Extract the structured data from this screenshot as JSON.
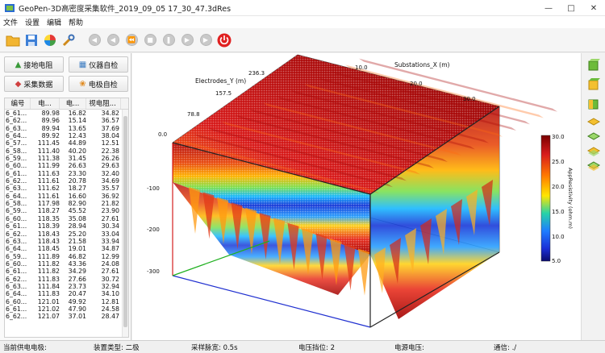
{
  "window": {
    "title": "GeoPen-3D高密度采集软件_2019_09_05 17_30_47.3dRes"
  },
  "menu": [
    "文件",
    "设置",
    "编辑",
    "帮助"
  ],
  "panel_buttons": {
    "ground_resistance": "接地电阻",
    "instrument_check": "仪器自检",
    "collect_data": "采集数据",
    "electrode_check": "电极自检"
  },
  "table": {
    "headers": [
      "编号",
      "电...",
      "电...",
      "视电阻..."
    ],
    "rows": [
      [
        "6_61...",
        "89.98",
        "16.82",
        "34.82"
      ],
      [
        "6_62...",
        "89.96",
        "15.14",
        "36.57"
      ],
      [
        "6_63...",
        "89.94",
        "13.65",
        "37.69"
      ],
      [
        "6_64...",
        "89.92",
        "12.43",
        "38.04"
      ],
      [
        "6_57...",
        "111.45",
        "44.89",
        "12.51"
      ],
      [
        "6_58...",
        "111.40",
        "40.20",
        "22.38"
      ],
      [
        "6_59...",
        "111.38",
        "31.45",
        "26.26"
      ],
      [
        "6_60...",
        "111.99",
        "26.63",
        "29.63"
      ],
      [
        "6_61...",
        "111.63",
        "23.30",
        "32.40"
      ],
      [
        "6_62...",
        "111.61",
        "20.78",
        "34.69"
      ],
      [
        "6_63...",
        "111.62",
        "18.27",
        "35.57"
      ],
      [
        "6_64...",
        "111.61",
        "16.60",
        "36.92"
      ],
      [
        "6_58...",
        "117.98",
        "82.90",
        "21.82"
      ],
      [
        "6_59...",
        "118.27",
        "45.52",
        "23.90"
      ],
      [
        "6_60...",
        "118.35",
        "35.08",
        "27.61"
      ],
      [
        "6_61...",
        "118.39",
        "28.94",
        "30.34"
      ],
      [
        "6_62...",
        "118.43",
        "25.20",
        "33.04"
      ],
      [
        "6_63...",
        "118.43",
        "21.58",
        "33.94"
      ],
      [
        "6_64...",
        "118.45",
        "19.01",
        "34.87"
      ],
      [
        "6_59...",
        "111.89",
        "46.82",
        "12.99"
      ],
      [
        "6_60...",
        "111.82",
        "43.36",
        "24.08"
      ],
      [
        "6_61...",
        "111.82",
        "34.29",
        "27.61"
      ],
      [
        "6_62...",
        "111.83",
        "27.66",
        "30.72"
      ],
      [
        "6_63...",
        "111.84",
        "23.73",
        "32.94"
      ],
      [
        "6_64...",
        "111.83",
        "20.47",
        "34.10"
      ],
      [
        "6_60...",
        "121.01",
        "49.92",
        "12.81"
      ],
      [
        "6_61...",
        "121.02",
        "47.90",
        "24.58"
      ],
      [
        "6_62...",
        "121.07",
        "37.01",
        "28.47"
      ]
    ]
  },
  "plot": {
    "axis_x_label": "Substations_X (m)",
    "axis_y_label": "Electrodes_Y (m)",
    "x_ticks": [
      "10.0",
      "20.0",
      "30.0"
    ],
    "y_ticks": [
      "0.0",
      "78.8",
      "157.5",
      "236.3"
    ],
    "z_ticks": [
      "-100",
      "-200",
      "-300"
    ],
    "colorbar_title": "AppResistivity (ohm.m)",
    "colorbar_ticks": [
      "30.0",
      "25.0",
      "20.0",
      "15.0",
      "10.0",
      "5.0"
    ]
  },
  "status": {
    "current_electrode": "当前供电电极:",
    "device_type": "装置类型: 二极",
    "sample_width": "采样脉宽: 0.5s",
    "voltage_level": "电压挡位: 2",
    "supply_voltage": "电源电压:",
    "comm": "通信: ./"
  },
  "colors": {
    "accent_red": "#e02020",
    "toolbar_bg": "#f5f5f5"
  }
}
